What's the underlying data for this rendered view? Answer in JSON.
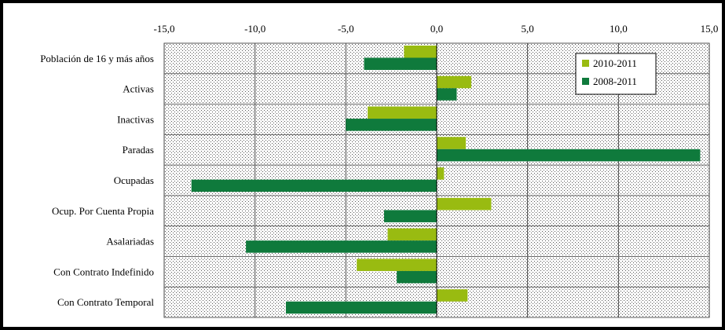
{
  "chart_data": {
    "type": "bar",
    "orientation": "horizontal",
    "categories": [
      "Población de 16 y más años",
      "Activas",
      "Inactivas",
      "Paradas",
      "Ocupadas",
      "Ocup. Por Cuenta Propia",
      "Asalariadas",
      "Con Contrato Indefinido",
      "Con Contrato Temporal"
    ],
    "series": [
      {
        "name": "2010-2011",
        "color": "#99bb11",
        "values": [
          -1.8,
          1.9,
          -3.8,
          1.6,
          0.4,
          3.0,
          -2.7,
          -4.4,
          1.7
        ]
      },
      {
        "name": "2008-2011",
        "color": "#0f7a3c",
        "values": [
          -4.0,
          1.1,
          -5.0,
          14.5,
          -13.5,
          -2.9,
          -10.5,
          -2.2,
          -8.3
        ]
      }
    ],
    "xlim": [
      -15,
      15
    ],
    "xticks": [
      "-15,0",
      "-10,0",
      "-5,0",
      "0,0",
      "5,0",
      "10,0",
      "15,0"
    ],
    "grid": true,
    "legend_position": "top-right",
    "title": "",
    "xlabel": "",
    "ylabel": ""
  }
}
